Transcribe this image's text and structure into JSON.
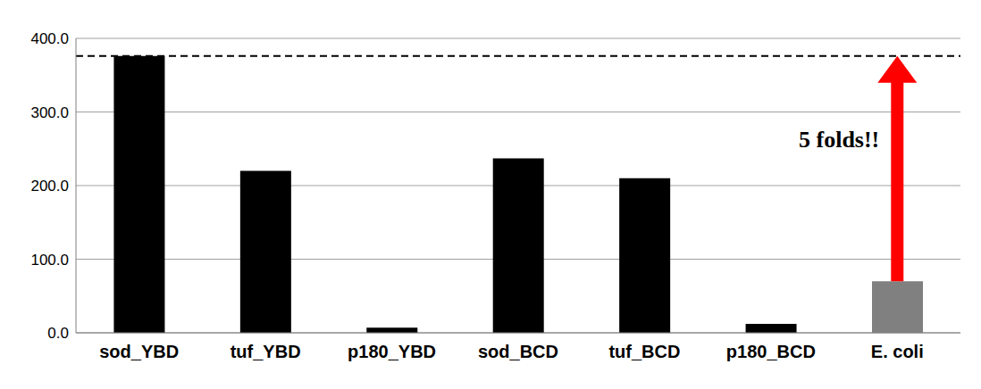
{
  "chart_data": {
    "type": "bar",
    "categories": [
      "sod_YBD",
      "tuf_YBD",
      "p180_YBD",
      "sod_BCD",
      "tuf_BCD",
      "p180_BCD",
      "E. coli"
    ],
    "values": [
      376,
      220,
      7,
      237,
      210,
      12,
      70
    ],
    "colors": [
      "#000000",
      "#000000",
      "#000000",
      "#000000",
      "#000000",
      "#000000",
      "#808080"
    ],
    "ylim": [
      0,
      400
    ],
    "yticks": [
      {
        "value": 0,
        "label": "0.0"
      },
      {
        "value": 100,
        "label": "100.0"
      },
      {
        "value": 200,
        "label": "200.0"
      },
      {
        "value": 300,
        "label": "300.0"
      },
      {
        "value": 400,
        "label": "400.0"
      }
    ],
    "grid": true,
    "reference_line": 376,
    "annotations": [
      {
        "text": "5 folds!!",
        "category": "E. coli",
        "from": 70,
        "to": 376,
        "color": "#ff0000"
      }
    ]
  }
}
